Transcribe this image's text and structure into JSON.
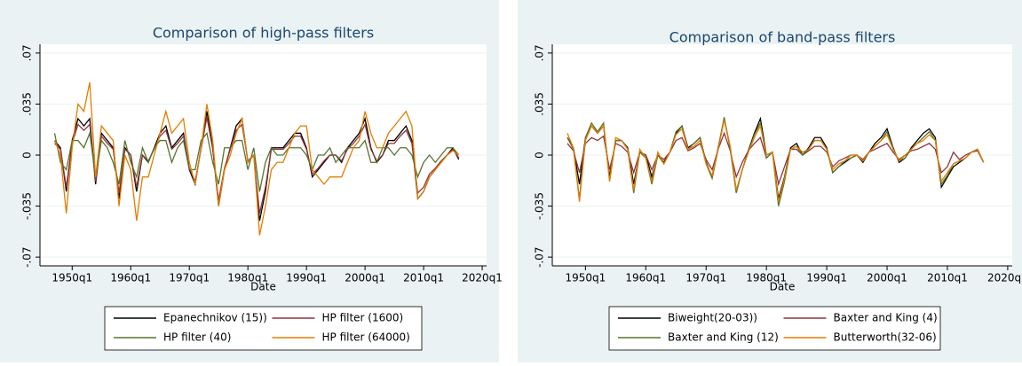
{
  "chart_data": [
    {
      "type": "line",
      "title": "Comparison of high-pass filters",
      "xlabel": "Date",
      "x": [
        "1947q1",
        "1948q1",
        "1949q1",
        "1950q1",
        "1951q1",
        "1952q1",
        "1953q1",
        "1954q1",
        "1955q1",
        "1956q1",
        "1957q1",
        "1958q1",
        "1959q1",
        "1960q1",
        "1961q1",
        "1962q1",
        "1963q1",
        "1964q1",
        "1965q1",
        "1966q1",
        "1967q1",
        "1968q1",
        "1969q1",
        "1970q1",
        "1971q1",
        "1972q1",
        "1973q1",
        "1974q1",
        "1975q1",
        "1976q1",
        "1977q1",
        "1978q1",
        "1979q1",
        "1980q1",
        "1981q1",
        "1982q1",
        "1983q1",
        "1984q1",
        "1985q1",
        "1986q1",
        "1987q1",
        "1988q1",
        "1989q1",
        "1990q1",
        "1991q1",
        "1992q1",
        "1993q1",
        "1994q1",
        "1995q1",
        "1996q1",
        "1997q1",
        "1998q1",
        "1999q1",
        "2000q1",
        "2001q1",
        "2002q1",
        "2003q1",
        "2004q1",
        "2005q1",
        "2006q1",
        "2007q1",
        "2008q1",
        "2009q1",
        "2010q1",
        "2011q1",
        "2012q1",
        "2013q1",
        "2014q1",
        "2015q1",
        "2016q1"
      ],
      "xlim": [
        "1944q3",
        "2020q4"
      ],
      "xticks": [
        "1950q1",
        "1960q1",
        "1970q1",
        "1980q1",
        "1990q1",
        "2000q1",
        "2010q1",
        "2020q1"
      ],
      "ylim": [
        -0.076,
        0.076
      ],
      "yticks": [
        {
          "value": -0.07,
          "label": "-.07"
        },
        {
          "value": -0.035,
          "label": "-.035"
        },
        0,
        {
          "value": 0.035,
          "label": ".035"
        },
        {
          "value": 0.07,
          "label": ".07"
        }
      ],
      "series": [
        {
          "name": "Epanechnikov (15))",
          "color": "#000000",
          "values": [
            0.01,
            0.005,
            -0.025,
            0.01,
            0.025,
            0.02,
            0.025,
            -0.02,
            0.015,
            0.01,
            0.005,
            -0.03,
            0.005,
            0.0,
            -0.025,
            0.0,
            -0.005,
            0.005,
            0.015,
            0.02,
            0.005,
            0.01,
            0.015,
            -0.01,
            -0.02,
            0.005,
            0.03,
            0.005,
            -0.035,
            -0.01,
            0.005,
            0.02,
            0.025,
            -0.005,
            0.0,
            -0.045,
            -0.025,
            0.005,
            0.005,
            0.005,
            0.01,
            0.015,
            0.015,
            0.005,
            -0.015,
            -0.01,
            -0.005,
            0.0,
            0.0,
            -0.005,
            0.005,
            0.01,
            0.015,
            0.025,
            0.005,
            -0.005,
            0.0,
            0.01,
            0.01,
            0.015,
            0.02,
            0.01,
            -0.03,
            -0.025,
            -0.015,
            -0.01,
            -0.005,
            0.0,
            0.005,
            -0.003
          ]
        },
        {
          "name": "HP filter (1600)",
          "color": "#90353b",
          "values": [
            0.008,
            0.004,
            -0.022,
            0.008,
            0.021,
            0.017,
            0.021,
            -0.018,
            0.013,
            0.008,
            0.004,
            -0.026,
            0.004,
            0.0,
            -0.022,
            0.0,
            -0.004,
            0.004,
            0.013,
            0.017,
            0.004,
            0.008,
            0.013,
            -0.009,
            -0.018,
            0.004,
            0.026,
            0.004,
            -0.031,
            -0.009,
            0.004,
            0.017,
            0.021,
            -0.004,
            0.0,
            -0.04,
            -0.022,
            0.004,
            0.004,
            0.004,
            0.008,
            0.013,
            0.013,
            0.004,
            -0.013,
            -0.009,
            -0.004,
            0.0,
            0.0,
            -0.004,
            0.004,
            0.008,
            0.013,
            0.021,
            0.004,
            -0.004,
            0.0,
            0.008,
            0.008,
            0.013,
            0.017,
            0.008,
            -0.026,
            -0.022,
            -0.013,
            -0.009,
            -0.004,
            0.0,
            0.004,
            -0.002
          ]
        },
        {
          "name": "HP filter (40)",
          "color": "#55752f",
          "values": [
            0.015,
            -0.005,
            -0.01,
            0.01,
            0.01,
            0.005,
            0.015,
            -0.015,
            0.01,
            0.005,
            -0.005,
            -0.02,
            0.01,
            -0.005,
            -0.015,
            0.005,
            -0.005,
            0.005,
            0.01,
            0.01,
            -0.005,
            0.005,
            0.01,
            -0.01,
            -0.01,
            0.01,
            0.015,
            -0.005,
            -0.02,
            0.005,
            0.005,
            0.01,
            0.01,
            -0.01,
            0.005,
            -0.025,
            -0.005,
            0.005,
            0.0,
            0.0,
            0.005,
            0.005,
            0.005,
            0.0,
            -0.01,
            0.0,
            0.0,
            0.005,
            -0.005,
            0.0,
            0.005,
            0.005,
            0.005,
            0.01,
            -0.005,
            -0.005,
            0.005,
            0.005,
            0.0,
            0.005,
            0.005,
            0.0,
            -0.015,
            -0.005,
            0.0,
            -0.005,
            0.0,
            0.005,
            0.005,
            0.0
          ]
        },
        {
          "name": "HP filter (64000)",
          "color": "#e37e00",
          "values": [
            0.01,
            0.0,
            -0.04,
            0.005,
            0.035,
            0.03,
            0.05,
            -0.015,
            0.02,
            0.015,
            0.01,
            -0.035,
            0.0,
            -0.01,
            -0.045,
            -0.015,
            -0.015,
            0.0,
            0.015,
            0.03,
            0.015,
            0.02,
            0.025,
            -0.005,
            -0.02,
            0.005,
            0.035,
            0.01,
            -0.035,
            -0.01,
            0.0,
            0.015,
            0.025,
            -0.005,
            0.0,
            -0.055,
            -0.035,
            -0.01,
            -0.005,
            -0.005,
            0.005,
            0.015,
            0.02,
            0.02,
            -0.01,
            -0.015,
            -0.02,
            -0.015,
            -0.015,
            -0.015,
            -0.005,
            0.005,
            0.01,
            0.03,
            0.015,
            0.005,
            0.005,
            0.015,
            0.02,
            0.025,
            0.03,
            0.02,
            -0.03,
            -0.025,
            -0.015,
            -0.01,
            -0.005,
            0.0,
            0.003,
            0.0
          ]
        }
      ]
    },
    {
      "type": "line",
      "title": "Comparison of band-pass filters",
      "xlabel": "Date",
      "x": [
        "1947q1",
        "1948q1",
        "1949q1",
        "1950q1",
        "1951q1",
        "1952q1",
        "1953q1",
        "1954q1",
        "1955q1",
        "1956q1",
        "1957q1",
        "1958q1",
        "1959q1",
        "1960q1",
        "1961q1",
        "1962q1",
        "1963q1",
        "1964q1",
        "1965q1",
        "1966q1",
        "1967q1",
        "1968q1",
        "1969q1",
        "1970q1",
        "1971q1",
        "1972q1",
        "1973q1",
        "1974q1",
        "1975q1",
        "1976q1",
        "1977q1",
        "1978q1",
        "1979q1",
        "1980q1",
        "1981q1",
        "1982q1",
        "1983q1",
        "1984q1",
        "1985q1",
        "1986q1",
        "1987q1",
        "1988q1",
        "1989q1",
        "1990q1",
        "1991q1",
        "1992q1",
        "1993q1",
        "1994q1",
        "1995q1",
        "1996q1",
        "1997q1",
        "1998q1",
        "1999q1",
        "2000q1",
        "2001q1",
        "2002q1",
        "2003q1",
        "2004q1",
        "2005q1",
        "2006q1",
        "2007q1",
        "2008q1",
        "2009q1",
        "2010q1",
        "2011q1",
        "2012q1",
        "2013q1",
        "2014q1",
        "2015q1",
        "2016q1"
      ],
      "xlim": [
        "1944q3",
        "2020q4"
      ],
      "xticks": [
        "1950q1",
        "1960q1",
        "1970q1",
        "1980q1",
        "1990q1",
        "2000q1",
        "2010q1",
        "2020q1"
      ],
      "ylim": [
        -0.076,
        0.076
      ],
      "yticks": [
        {
          "value": -0.07,
          "label": "-.07"
        },
        {
          "value": -0.035,
          "label": "-.035"
        },
        0,
        {
          "value": 0.035,
          "label": ".035"
        },
        {
          "value": 0.07,
          "label": ".07"
        }
      ],
      "series": [
        {
          "name": "Biweight(20-03))",
          "color": "#000000",
          "values": [
            0.012,
            0.005,
            -0.02,
            0.012,
            0.02,
            0.015,
            0.02,
            -0.015,
            0.01,
            0.01,
            0.005,
            -0.02,
            0.002,
            0.0,
            -0.015,
            0.0,
            -0.005,
            0.002,
            0.015,
            0.02,
            0.005,
            0.008,
            0.012,
            -0.005,
            -0.015,
            0.005,
            0.025,
            0.005,
            -0.025,
            -0.01,
            0.003,
            0.015,
            0.025,
            0.0,
            0.002,
            -0.03,
            -0.015,
            0.005,
            0.008,
            0.0,
            0.005,
            0.012,
            0.012,
            0.005,
            -0.012,
            -0.008,
            -0.005,
            -0.002,
            0.0,
            -0.005,
            0.002,
            0.008,
            0.012,
            0.018,
            0.005,
            -0.005,
            -0.002,
            0.005,
            0.01,
            0.015,
            0.018,
            0.012,
            -0.022,
            -0.015,
            -0.008,
            -0.005,
            -0.002,
            0.002,
            0.004,
            -0.005
          ]
        },
        {
          "name": "Baxter and King (4)",
          "color": "#90353b",
          "values": [
            0.008,
            0.003,
            -0.012,
            0.008,
            0.012,
            0.01,
            0.013,
            -0.01,
            0.008,
            0.006,
            0.002,
            -0.012,
            0.002,
            0.0,
            -0.01,
            0.0,
            -0.003,
            0.002,
            0.01,
            0.012,
            0.003,
            0.005,
            0.008,
            -0.003,
            -0.01,
            0.004,
            0.015,
            0.003,
            -0.015,
            -0.005,
            0.003,
            0.008,
            0.012,
            -0.002,
            0.002,
            -0.02,
            -0.008,
            0.004,
            0.004,
            0.0,
            0.003,
            0.006,
            0.006,
            0.002,
            -0.008,
            -0.004,
            -0.002,
            0.0,
            0.0,
            -0.003,
            0.002,
            0.004,
            0.006,
            0.008,
            0.002,
            -0.003,
            0.0,
            0.003,
            0.004,
            0.006,
            0.008,
            0.004,
            -0.012,
            -0.008,
            0.002,
            -0.003,
            0.0,
            0.002,
            0.003,
            -0.005
          ]
        },
        {
          "name": "Baxter and King (12)",
          "color": "#55752f",
          "values": [
            0.012,
            0.004,
            -0.03,
            0.012,
            0.022,
            0.016,
            0.022,
            -0.018,
            0.01,
            0.01,
            0.004,
            -0.026,
            0.002,
            -0.002,
            -0.02,
            0.0,
            -0.006,
            0.002,
            0.016,
            0.02,
            0.004,
            0.008,
            0.012,
            -0.006,
            -0.016,
            0.004,
            0.026,
            0.004,
            -0.026,
            -0.01,
            0.002,
            0.014,
            0.022,
            -0.002,
            0.002,
            -0.035,
            -0.018,
            0.004,
            0.006,
            0.0,
            0.004,
            0.01,
            0.01,
            0.004,
            -0.012,
            -0.008,
            -0.004,
            -0.002,
            0.0,
            -0.004,
            0.002,
            0.006,
            0.01,
            0.016,
            0.004,
            -0.004,
            -0.002,
            0.004,
            0.008,
            0.012,
            0.016,
            0.01,
            -0.02,
            -0.014,
            -0.006,
            -0.004,
            -0.002,
            0.002,
            0.004,
            -0.005
          ]
        },
        {
          "name": "Butterworth(32-06)",
          "color": "#e37e00",
          "values": [
            0.015,
            0.005,
            -0.032,
            0.01,
            0.02,
            0.015,
            0.02,
            -0.018,
            0.012,
            0.01,
            0.004,
            -0.024,
            0.004,
            -0.002,
            -0.018,
            0.002,
            -0.006,
            0.002,
            0.014,
            0.018,
            0.004,
            0.006,
            0.01,
            -0.006,
            -0.014,
            0.004,
            0.024,
            0.006,
            -0.024,
            -0.01,
            0.002,
            0.012,
            0.02,
            0.0,
            0.002,
            -0.032,
            -0.016,
            0.004,
            0.006,
            0.002,
            0.004,
            0.01,
            0.01,
            0.004,
            -0.01,
            -0.006,
            -0.004,
            0.0,
            0.0,
            -0.004,
            0.002,
            0.006,
            0.01,
            0.014,
            0.004,
            -0.004,
            0.0,
            0.004,
            0.008,
            0.01,
            0.014,
            0.01,
            -0.018,
            -0.012,
            -0.006,
            -0.004,
            -0.002,
            0.002,
            0.004,
            -0.005
          ]
        }
      ]
    }
  ]
}
